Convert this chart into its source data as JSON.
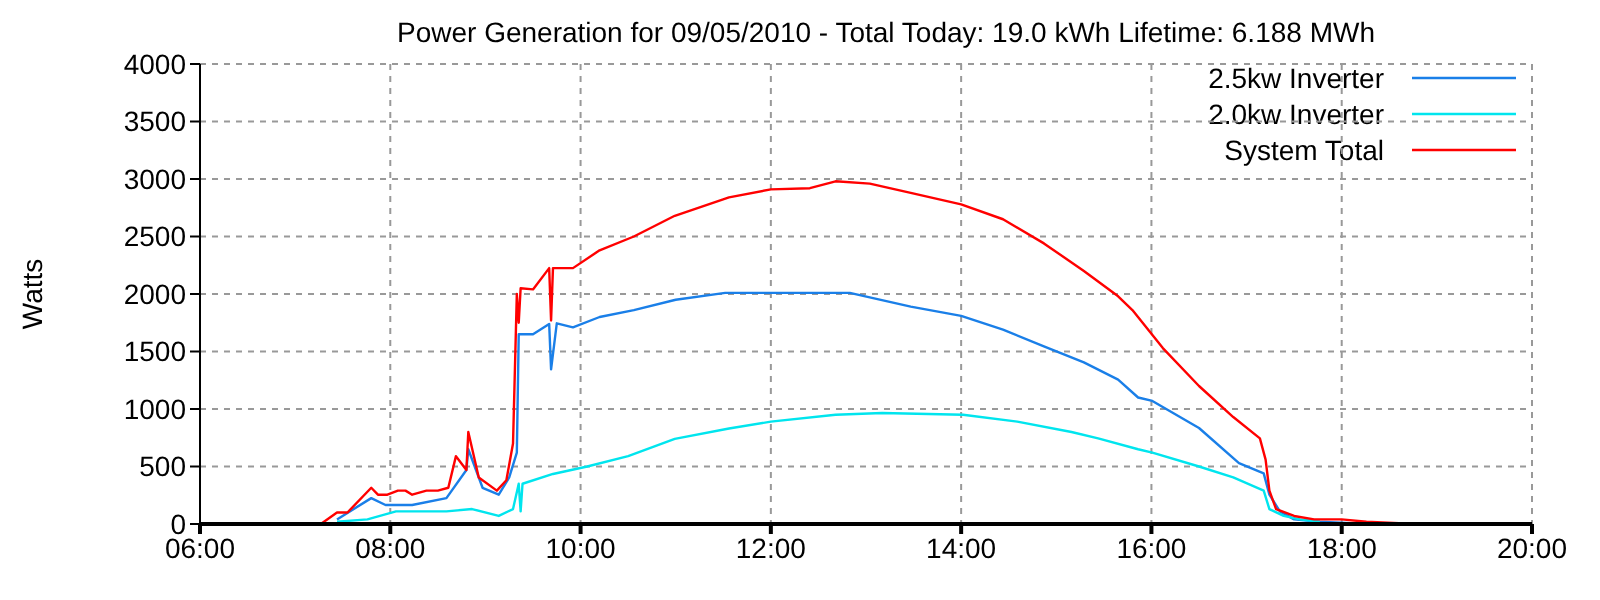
{
  "chart_data": {
    "type": "line",
    "title": "Power Generation for 09/05/2010 - Total Today: 19.0 kWh   Lifetime: 6.188 MWh",
    "ylabel": "Watts",
    "xlim": [
      6,
      20
    ],
    "xticks": [
      {
        "value": 6,
        "label": "06:00"
      },
      {
        "value": 8,
        "label": "08:00"
      },
      {
        "value": 10,
        "label": "10:00"
      },
      {
        "value": 12,
        "label": "12:00"
      },
      {
        "value": 14,
        "label": "14:00"
      },
      {
        "value": 16,
        "label": "16:00"
      },
      {
        "value": 18,
        "label": "18:00"
      },
      {
        "value": 20,
        "label": "20:00"
      }
    ],
    "ylim": [
      0,
      4000
    ],
    "yticks": [
      0,
      500,
      1000,
      1500,
      2000,
      2500,
      3000,
      3500,
      4000
    ],
    "grid": true,
    "legend": "top right",
    "marker": "none",
    "line_style": "solid",
    "series": [
      {
        "name": "2.5kw Inverter",
        "color": "#1a7fe8",
        "x": [
          7.44,
          7.8,
          7.95,
          8.23,
          8.59,
          8.8,
          8.82,
          8.97,
          9.14,
          9.25,
          9.33,
          9.35,
          9.5,
          9.67,
          9.69,
          9.75,
          9.92,
          10.2,
          10.56,
          11.0,
          11.52,
          12.83,
          13.47,
          14.0,
          14.44,
          14.87,
          15.29,
          15.65,
          15.86,
          16.01,
          16.5,
          16.92,
          17.18,
          17.24,
          17.35,
          17.5,
          17.77,
          18.26
        ],
        "values": [
          40,
          225,
          165,
          165,
          225,
          470,
          650,
          315,
          255,
          405,
          620,
          1650,
          1650,
          1740,
          1345,
          1745,
          1710,
          1800,
          1860,
          1950,
          2010,
          2010,
          1890,
          1810,
          1690,
          1545,
          1405,
          1255,
          1100,
          1070,
          835,
          530,
          440,
          255,
          110,
          40,
          20,
          0
        ]
      },
      {
        "name": "2.0kw Inverter",
        "color": "#00e5ee",
        "x": [
          7.44,
          7.76,
          8.06,
          8.59,
          8.86,
          9.14,
          9.29,
          9.35,
          9.37,
          9.39,
          9.71,
          10.07,
          10.5,
          10.99,
          11.56,
          12.0,
          12.68,
          13.17,
          14.02,
          14.59,
          15.16,
          15.44,
          15.86,
          16.01,
          16.5,
          16.86,
          17.18,
          17.24,
          17.39,
          17.56,
          17.77
        ],
        "values": [
          20,
          40,
          110,
          110,
          130,
          70,
          130,
          350,
          110,
          350,
          435,
          500,
          590,
          740,
          830,
          890,
          950,
          965,
          950,
          890,
          800,
          745,
          650,
          620,
          500,
          405,
          290,
          130,
          70,
          40,
          20
        ]
      },
      {
        "name": "System Total",
        "color": "#ff0000",
        "x": [
          7.27,
          7.44,
          7.55,
          7.8,
          7.87,
          7.97,
          8.08,
          8.16,
          8.23,
          8.38,
          8.5,
          8.61,
          8.69,
          8.8,
          8.82,
          8.93,
          9.12,
          9.22,
          9.29,
          9.33,
          9.35,
          9.37,
          9.5,
          9.67,
          9.69,
          9.71,
          9.92,
          10.2,
          10.56,
          10.99,
          11.56,
          12.0,
          12.41,
          12.68,
          13.04,
          13.47,
          14.0,
          14.44,
          14.87,
          15.29,
          15.65,
          15.8,
          16.12,
          16.5,
          16.86,
          17.14,
          17.2,
          17.24,
          17.31,
          17.5,
          17.71,
          18.0,
          18.26,
          18.77
        ],
        "values": [
          0,
          100,
          100,
          315,
          255,
          255,
          290,
          290,
          255,
          290,
          290,
          315,
          590,
          470,
          800,
          405,
          290,
          380,
          700,
          2000,
          1750,
          2050,
          2040,
          2225,
          1770,
          2225,
          2225,
          2380,
          2500,
          2680,
          2840,
          2910,
          2920,
          2980,
          2960,
          2880,
          2780,
          2650,
          2440,
          2200,
          1980,
          1860,
          1530,
          1200,
          930,
          745,
          560,
          290,
          130,
          70,
          40,
          40,
          20,
          0
        ]
      }
    ]
  }
}
